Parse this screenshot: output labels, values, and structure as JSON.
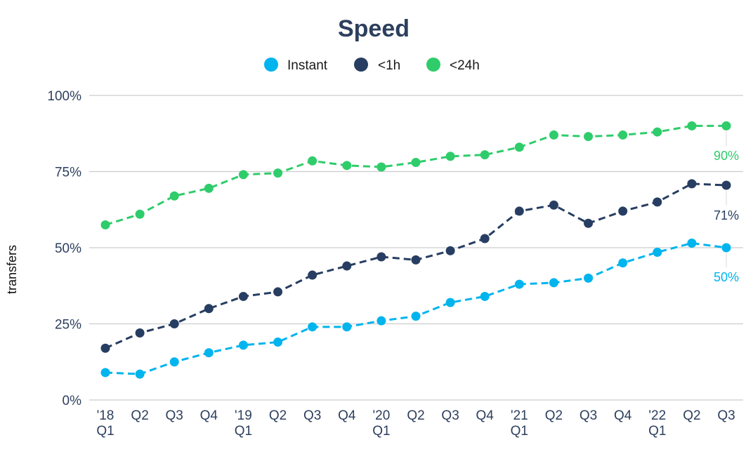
{
  "chart_data": {
    "type": "line",
    "title": "Speed",
    "ylabel": "transfers",
    "xlabel": "",
    "ylim": [
      0,
      100
    ],
    "yticks": [
      0,
      25,
      50,
      75,
      100
    ],
    "ytick_labels": [
      "0%",
      "25%",
      "50%",
      "75%",
      "100%"
    ],
    "grid": true,
    "legend_placement": "top-center",
    "categories": [
      "'18 Q1",
      "Q2",
      "Q3",
      "Q4",
      "'19 Q1",
      "Q2",
      "Q3",
      "Q4",
      "'20 Q1",
      "Q2",
      "Q3",
      "Q4",
      "'21 Q1",
      "Q2",
      "Q3",
      "Q4",
      "'22 Q1",
      "Q2",
      "Q3"
    ],
    "tick_labels": [
      [
        "'18",
        "Q1"
      ],
      [
        "Q2"
      ],
      [
        "Q3"
      ],
      [
        "Q4"
      ],
      [
        "'19",
        "Q1"
      ],
      [
        "Q2"
      ],
      [
        "Q3"
      ],
      [
        "Q4"
      ],
      [
        "'20",
        "Q1"
      ],
      [
        "Q2"
      ],
      [
        "Q3"
      ],
      [
        "Q4"
      ],
      [
        "'21",
        "Q1"
      ],
      [
        "Q2"
      ],
      [
        "Q3"
      ],
      [
        "Q4"
      ],
      [
        "'22",
        "Q1"
      ],
      [
        "Q2"
      ],
      [
        "Q3"
      ]
    ],
    "series": [
      {
        "name": "Instant",
        "color": "#00b4ee",
        "values": [
          9,
          8.5,
          12.5,
          15.5,
          18,
          19,
          24,
          24,
          26,
          27.5,
          32,
          34,
          38,
          38.5,
          40,
          45,
          48.5,
          51.5,
          50
        ],
        "end_label": "50%"
      },
      {
        "name": "<1h",
        "color": "#273e62",
        "values": [
          17,
          22,
          25,
          30,
          34,
          35.5,
          41,
          44,
          47,
          46,
          49,
          53,
          62,
          64,
          58,
          62,
          65,
          71,
          70.5
        ],
        "end_label": "71%"
      },
      {
        "name": "<24h",
        "color": "#2fcc6b",
        "values": [
          57.5,
          61,
          67,
          69.5,
          74,
          74.5,
          78.5,
          77,
          76.5,
          78,
          80,
          80.5,
          83,
          87,
          86.5,
          87,
          88,
          90,
          90
        ],
        "end_label": "90%"
      }
    ]
  },
  "colors": {
    "title": "#2d3f5e",
    "grid": "#cccccc",
    "axis_text": "#2d3f5e"
  }
}
